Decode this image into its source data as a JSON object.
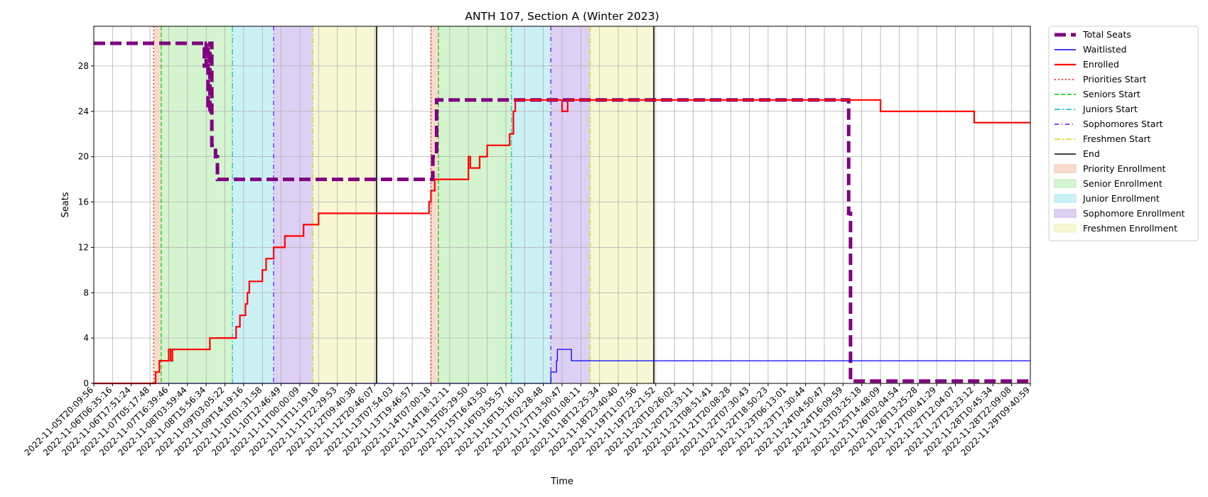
{
  "chart_data": {
    "type": "line",
    "title": "ANTH 107, Section A (Winter 2023)",
    "xlabel": "Time",
    "ylabel": "Seats",
    "ylim": [
      0,
      31.5
    ],
    "y_ticks": [
      0,
      4,
      8,
      12,
      16,
      20,
      24,
      28
    ],
    "x_tick_labels": [
      "2022-11-05T20:09:56",
      "2022-11-06T06:35:16",
      "2022-11-06T17:51:24",
      "2022-11-07T05:17:48",
      "2022-11-07T16:39:46",
      "2022-11-08T03:59:44",
      "2022-11-08T15:56:34",
      "2022-11-09T03:05:22",
      "2022-11-09T14:19:16",
      "2022-11-10T01:31:58",
      "2022-11-10T12:46:49",
      "2022-11-11T00:00:09",
      "2022-11-11T11:19:18",
      "2022-11-11T22:29:53",
      "2022-11-12T09:40:38",
      "2022-11-12T20:46:07",
      "2022-11-13T07:54:03",
      "2022-11-13T19:46:57",
      "2022-11-14T07:00:18",
      "2022-11-14T18:12:11",
      "2022-11-15T05:29:50",
      "2022-11-15T16:43:50",
      "2022-11-16T03:55:57",
      "2022-11-16T15:16:10",
      "2022-11-17T02:28:48",
      "2022-11-17T13:50:47",
      "2022-11-18T01:08:11",
      "2022-11-18T12:25:34",
      "2022-11-18T23:40:40",
      "2022-11-19T11:07:56",
      "2022-11-19T22:21:52",
      "2022-11-20T10:26:02",
      "2022-11-20T21:33:11",
      "2022-11-21T08:51:41",
      "2022-11-21T20:08:28",
      "2022-11-22T07:30:43",
      "2022-11-22T18:50:23",
      "2022-11-23T06:13:01",
      "2022-11-23T17:30:44",
      "2022-11-24T04:50:47",
      "2022-11-24T16:09:59",
      "2022-11-25T03:25:18",
      "2022-11-25T14:48:09",
      "2022-11-26T02:04:54",
      "2022-11-26T13:25:28",
      "2022-11-27T00:41:29",
      "2022-11-27T12:04:07",
      "2022-11-27T23:23:12",
      "2022-11-28T10:45:34",
      "2022-11-28T22:09:08",
      "2022-11-29T09:40:59"
    ],
    "series": [
      {
        "name": "Total Seats",
        "color": "#800080",
        "style": "dashed-thick",
        "x": [
          0,
          5.9,
          5.9,
          6.0,
          6.0,
          6.1,
          6.1,
          6.2,
          6.2,
          6.3,
          6.3,
          6.5,
          6.5,
          6.6,
          6.6,
          18.0,
          18.0,
          18.1,
          18.1,
          18.3,
          18.3,
          40.3,
          40.3,
          40.4,
          40.4,
          50.0
        ],
        "y": [
          30,
          30,
          28,
          28,
          30,
          30,
          24,
          24,
          30,
          30,
          21,
          21,
          20,
          20,
          18,
          18,
          18,
          18,
          20,
          20,
          25,
          25,
          15,
          15,
          0.2,
          0.2
        ]
      },
      {
        "name": "Waitlisted",
        "color": "#0000ff",
        "style": "solid",
        "x": [
          0,
          24.4,
          24.4,
          24.6,
          24.6,
          24.7,
          24.7,
          24.75,
          24.75,
          25.5,
          25.5,
          50
        ],
        "y": [
          0,
          0,
          1,
          1,
          1,
          1,
          2,
          2,
          3,
          3,
          2,
          2
        ]
      },
      {
        "name": "Enrolled",
        "color": "#ff0000",
        "style": "solid",
        "x": [
          0,
          3.3,
          3.3,
          3.5,
          3.5,
          4.0,
          4.0,
          4.1,
          4.1,
          4.2,
          4.2,
          4.3,
          4.3,
          5.9,
          5.9,
          6.2,
          6.2,
          7.5,
          7.5,
          7.6,
          7.6,
          7.7,
          7.7,
          7.8,
          7.8,
          8.1,
          8.1,
          8.2,
          8.2,
          8.3,
          8.3,
          9.0,
          9.0,
          9.2,
          9.2,
          9.6,
          9.6,
          10.2,
          10.2,
          11.2,
          11.2,
          11.3,
          11.3,
          11.5,
          11.5,
          12.0,
          12.0,
          12.2,
          12.2,
          13.3,
          13.3,
          17.9,
          17.9,
          18.0,
          18.0,
          18.2,
          18.2,
          18.3,
          18.3,
          20.0,
          20.0,
          20.1,
          20.1,
          20.6,
          20.6,
          21.0,
          21.0,
          22.2,
          22.2,
          22.3,
          22.3,
          22.4,
          22.4,
          22.5,
          22.5,
          23.8,
          23.8,
          23.9,
          23.9,
          24.3,
          24.3,
          25.0,
          25.0,
          25.3,
          25.3,
          25.5,
          25.5,
          26.0,
          26.0,
          26.8,
          26.8,
          27.5,
          27.5,
          40.4,
          40.4,
          40.7,
          40.7,
          40.8,
          40.8,
          42.0,
          42.0,
          47.0,
          47.0,
          50.0
        ],
        "y": [
          0,
          0,
          1,
          1,
          2,
          2,
          3,
          3,
          2,
          2,
          3,
          3,
          3,
          3,
          3,
          3,
          4,
          4,
          4,
          4,
          5,
          5,
          5,
          5,
          6,
          6,
          7,
          7,
          8,
          8,
          9,
          9,
          10,
          10,
          11,
          11,
          12,
          12,
          13,
          13,
          14,
          14,
          14,
          14,
          14,
          14,
          15,
          15,
          15,
          15,
          15,
          15,
          16,
          16,
          17,
          17,
          18,
          18,
          18,
          18,
          20,
          20,
          19,
          19,
          20,
          20,
          21,
          21,
          22,
          22,
          22,
          22,
          24,
          24,
          25,
          25,
          25,
          25,
          25,
          25,
          25,
          25,
          24,
          24,
          25,
          25,
          25,
          25,
          25,
          25,
          25,
          25,
          25,
          25,
          25,
          25,
          25,
          25,
          25,
          25,
          24,
          24,
          23,
          23
        ]
      }
    ],
    "phase_lines": [
      {
        "name": "Priorities Start",
        "color": "#ff0000",
        "dash": "2,3",
        "x": [
          3.2,
          18.0
        ]
      },
      {
        "name": "Seniors Start",
        "color": "#00cc00",
        "dash": "6,3",
        "x": [
          3.6,
          18.4
        ]
      },
      {
        "name": "Juniors Start",
        "color": "#00c0c0",
        "dash": "8,3,2,3",
        "x": [
          7.4,
          22.3
        ]
      },
      {
        "name": "Sophomores Start",
        "color": "#6a00ff",
        "dash": "6,4,1,4",
        "x": [
          9.6,
          24.4
        ]
      },
      {
        "name": "Freshmen Start",
        "color": "#d8d800",
        "dash": "8,3,2,3",
        "x": [
          11.7,
          26.5
        ]
      },
      {
        "name": "End",
        "color": "#000000",
        "dash": "",
        "x": [
          15.1,
          29.9
        ]
      }
    ],
    "phases": [
      {
        "name": "Priority Enrollment",
        "color": "#f4c4a8",
        "ranges": [
          [
            3.2,
            3.6
          ],
          [
            18.0,
            18.4
          ]
        ]
      },
      {
        "name": "Senior Enrollment",
        "color": "#b8ecb0",
        "ranges": [
          [
            3.6,
            7.4
          ],
          [
            18.4,
            22.3
          ]
        ]
      },
      {
        "name": "Junior Enrollment",
        "color": "#a8e8ee",
        "ranges": [
          [
            7.4,
            9.6
          ],
          [
            22.3,
            24.4
          ]
        ]
      },
      {
        "name": "Sophomore Enrollment",
        "color": "#c8b0ee",
        "ranges": [
          [
            9.6,
            11.7
          ],
          [
            24.4,
            26.5
          ]
        ]
      },
      {
        "name": "Freshmen Enrollment",
        "color": "#f2f2b8",
        "ranges": [
          [
            11.7,
            15.1
          ],
          [
            26.5,
            29.9
          ]
        ]
      }
    ],
    "grid": true,
    "legend_position": "outside-right-top"
  }
}
